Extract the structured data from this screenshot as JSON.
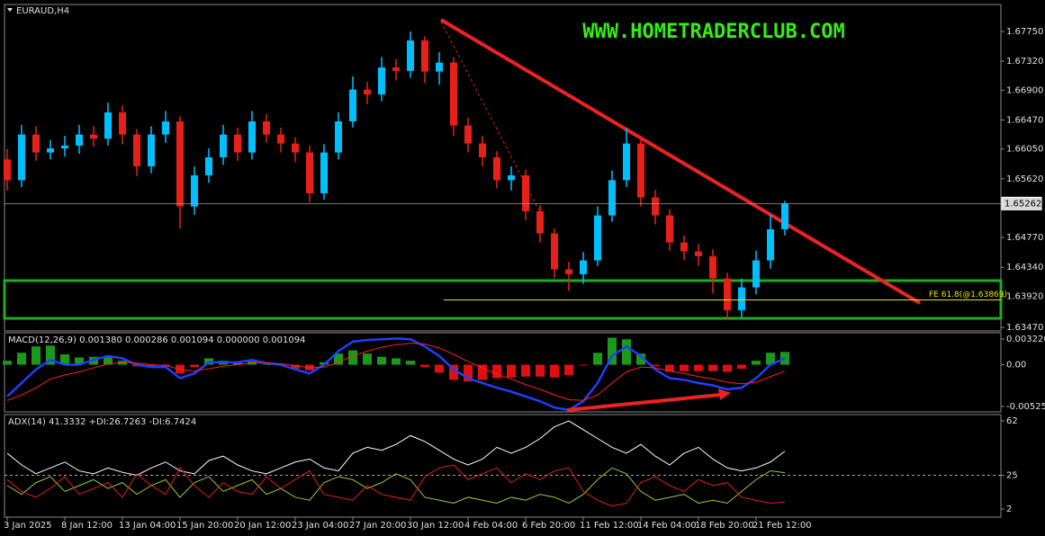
{
  "chart_data": [
    {
      "type": "candlestick",
      "title": "EURAUD,H4",
      "watermark": "WWW.HOMETRADERCLUB.COM",
      "categories": [
        "3 Jan 2025",
        null,
        null,
        null,
        "8 Jan 12:00",
        null,
        null,
        null,
        "13 Jan 04:00",
        null,
        null,
        null,
        "15 Jan 20:00",
        null,
        null,
        null,
        "20 Jan 12:00",
        null,
        null,
        null,
        "23 Jan 04:00",
        null,
        null,
        null,
        "27 Jan 20:00",
        null,
        null,
        null,
        "30 Jan 12:00",
        null,
        null,
        null,
        "4 Feb 04:00",
        null,
        null,
        null,
        "6 Feb 20:00",
        null,
        null,
        null,
        "11 Feb 12:00",
        null,
        null,
        null,
        "14 Feb 04:00",
        null,
        null,
        null,
        "18 Feb 20:00",
        null,
        null,
        null,
        "21 Feb 12:00",
        null,
        null
      ],
      "open": [
        1.659,
        1.656,
        1.6626,
        1.66,
        1.6606,
        1.661,
        1.6626,
        1.662,
        1.6658,
        1.6626,
        1.658,
        1.6626,
        1.6645,
        1.6522,
        1.6567,
        1.6593,
        1.6626,
        1.66,
        1.6645,
        1.6626,
        1.6613,
        1.66,
        1.6541,
        1.66,
        1.6645,
        1.6691,
        1.6684,
        1.6723,
        1.6718,
        1.6762,
        1.6717,
        1.673,
        1.6639,
        1.6613,
        1.6593,
        1.656,
        1.6567,
        1.6515,
        1.6483,
        1.6431,
        1.6424,
        1.6444,
        1.6509,
        1.656,
        1.6613,
        1.6535,
        1.6509,
        1.647,
        1.6457,
        1.645,
        1.6418,
        1.6372,
        1.6405,
        1.6444,
        1.6489
      ],
      "high": [
        1.6605,
        1.664,
        1.6638,
        1.6618,
        1.6624,
        1.664,
        1.6638,
        1.6672,
        1.6668,
        1.6634,
        1.6638,
        1.666,
        1.6652,
        1.658,
        1.6606,
        1.664,
        1.6636,
        1.666,
        1.6656,
        1.6636,
        1.6622,
        1.661,
        1.6612,
        1.6658,
        1.671,
        1.6702,
        1.6738,
        1.6735,
        1.6775,
        1.6768,
        1.6745,
        1.6738,
        1.665,
        1.6624,
        1.6602,
        1.658,
        1.6575,
        1.6524,
        1.649,
        1.6442,
        1.6456,
        1.6522,
        1.6574,
        1.6635,
        1.662,
        1.6546,
        1.6518,
        1.648,
        1.6468,
        1.646,
        1.6426,
        1.6418,
        1.6458,
        1.651,
        1.653
      ],
      "low": [
        1.6545,
        1.655,
        1.6588,
        1.659,
        1.6594,
        1.6598,
        1.6608,
        1.661,
        1.6612,
        1.6566,
        1.657,
        1.6614,
        1.649,
        1.651,
        1.6556,
        1.6582,
        1.6588,
        1.659,
        1.6614,
        1.66,
        1.6586,
        1.6528,
        1.6532,
        1.659,
        1.6636,
        1.667,
        1.6674,
        1.6704,
        1.6708,
        1.67,
        1.6698,
        1.6624,
        1.66,
        1.658,
        1.6548,
        1.6545,
        1.6502,
        1.647,
        1.6418,
        1.64,
        1.641,
        1.6436,
        1.65,
        1.655,
        1.6522,
        1.6496,
        1.6458,
        1.6444,
        1.6436,
        1.6396,
        1.636,
        1.6362,
        1.6395,
        1.6432,
        1.648
      ],
      "close": [
        1.656,
        1.6626,
        1.66,
        1.6606,
        1.661,
        1.6626,
        1.662,
        1.6658,
        1.6626,
        1.658,
        1.6626,
        1.6645,
        1.6522,
        1.6567,
        1.6593,
        1.6626,
        1.66,
        1.6645,
        1.6626,
        1.6613,
        1.66,
        1.6541,
        1.66,
        1.6645,
        1.6691,
        1.6684,
        1.6723,
        1.6718,
        1.6762,
        1.6717,
        1.673,
        1.6639,
        1.6613,
        1.6593,
        1.656,
        1.6567,
        1.6515,
        1.6483,
        1.6431,
        1.6424,
        1.6444,
        1.6509,
        1.656,
        1.6613,
        1.6535,
        1.6509,
        1.647,
        1.6457,
        1.645,
        1.6418,
        1.6372,
        1.6405,
        1.6444,
        1.6489,
        1.65262
      ],
      "up_color": "#00bfff",
      "down_color": "#e8201a",
      "ylim": [
        1.6342,
        1.6814
      ],
      "yticks": [
        {
          "value": 1.6775,
          "label": "1.67750"
        },
        {
          "value": 1.6732,
          "label": "1.67320"
        },
        {
          "value": 1.669,
          "label": "1.66900"
        },
        {
          "value": 1.6647,
          "label": "1.66470"
        },
        {
          "value": 1.6605,
          "label": "1.66050"
        },
        {
          "value": 1.6562,
          "label": "1.65620"
        },
        {
          "value": 1.6477,
          "label": "1.64770"
        },
        {
          "value": 1.6434,
          "label": "1.64340"
        },
        {
          "value": 1.6392,
          "label": "1.63920"
        },
        {
          "value": 1.6347,
          "label": "1.63470"
        }
      ],
      "fe_level": 1.63869,
      "fe_label": "FE 61.8(@1.63869)",
      "fe_color": "#e6e600"
    },
    {
      "type": "macd",
      "title": "MACD(12,26,9) 0.001380 0.000286 0.001094 0.000000 0.001094",
      "histogram": {
        "up_color": "#1a9a1a",
        "down_color": "#e01010",
        "values": [
          0.0005,
          0.0015,
          0.0023,
          0.0024,
          0.0013,
          0.0009,
          0.001,
          0.001,
          0.0005,
          -0.0002,
          -0.0003,
          -0.0002,
          -0.0011,
          -0.0003,
          0.0008,
          0.0005,
          0.0003,
          0.0004,
          0.0,
          -0.0001,
          -0.0005,
          -0.0007,
          0.0003,
          0.0014,
          0.0018,
          0.0014,
          0.001,
          0.0008,
          0.0005,
          -0.0003,
          -0.001,
          -0.0019,
          -0.0021,
          -0.0019,
          -0.0017,
          -0.0016,
          -0.0015,
          -0.0015,
          -0.0016,
          -0.0013,
          -0.0001,
          0.0015,
          0.0034,
          0.0032,
          0.0014,
          -0.0002,
          -0.0009,
          -0.0008,
          -0.0008,
          -0.0008,
          -0.0009,
          -0.0005,
          0.0005,
          0.0015,
          0.0016
        ]
      },
      "series": [
        {
          "color": "#1f3fff",
          "values": [
            -0.004,
            -0.0023,
            -0.0006,
            0.0006,
            0.0,
            0.0,
            0.0006,
            0.0011,
            0.0008,
            0.0,
            -0.0003,
            -0.0003,
            -0.0017,
            -0.0011,
            0.0003,
            0.0003,
            0.0003,
            0.0006,
            0.0002,
            0.0,
            -0.0006,
            -0.0011,
            0.0,
            0.0017,
            0.0029,
            0.0031,
            0.0032,
            0.0033,
            0.0032,
            0.0023,
            0.0011,
            -0.0006,
            -0.0017,
            -0.0023,
            -0.0029,
            -0.0034,
            -0.004,
            -0.0046,
            -0.0054,
            -0.0057,
            -0.0046,
            -0.0023,
            0.0011,
            0.0023,
            0.0011,
            -0.0006,
            -0.0017,
            -0.0019,
            -0.0023,
            -0.0026,
            -0.0031,
            -0.0029,
            -0.0017,
            0.0,
            0.0008
          ]
        },
        {
          "color": "#ff2020",
          "values": [
            -0.0045,
            -0.0038,
            -0.0029,
            -0.0018,
            -0.0013,
            -0.0009,
            -0.0004,
            0.0001,
            0.0003,
            0.0002,
            0.0,
            -0.0001,
            -0.0006,
            -0.0008,
            -0.0005,
            -0.0002,
            0.0,
            0.0002,
            0.0002,
            0.0001,
            -0.0001,
            -0.0004,
            -0.0003,
            0.0003,
            0.0011,
            0.0017,
            0.0022,
            0.0025,
            0.0027,
            0.0026,
            0.0021,
            0.0013,
            0.0004,
            -0.0004,
            -0.0012,
            -0.0018,
            -0.0025,
            -0.0031,
            -0.0038,
            -0.0044,
            -0.0045,
            -0.0038,
            -0.0023,
            -0.0009,
            -0.0003,
            -0.0004,
            -0.0008,
            -0.0011,
            -0.0015,
            -0.0018,
            -0.0022,
            -0.0024,
            -0.0022,
            -0.0015,
            -0.0008
          ]
        }
      ],
      "ylim": [
        -0.00594,
        0.00402
      ],
      "yticks": [
        0.003226,
        {
          "value": 0,
          "label": "0.00"
        },
        -0.005254
      ]
    },
    {
      "type": "adx",
      "title": "ADX(14) 41.3332 +DI:26.7263 -DI:6.7424",
      "series": [
        {
          "color": "#ffffff",
          "values": [
            40,
            32,
            26,
            30,
            34,
            28,
            26,
            30,
            27,
            25,
            30,
            34,
            28,
            26,
            35,
            38,
            32,
            28,
            26,
            30,
            34,
            36,
            30,
            28,
            40,
            44,
            42,
            46,
            52,
            48,
            42,
            36,
            32,
            36,
            44,
            40,
            44,
            50,
            58,
            62,
            56,
            50,
            44,
            40,
            46,
            38,
            32,
            40,
            44,
            36,
            30,
            28,
            30,
            34,
            41.3332
          ]
        },
        {
          "color": "#9acd32",
          "values": [
            18,
            12,
            20,
            24,
            14,
            18,
            22,
            16,
            20,
            12,
            18,
            22,
            10,
            20,
            24,
            14,
            18,
            22,
            12,
            16,
            10,
            8,
            20,
            24,
            22,
            16,
            20,
            26,
            22,
            10,
            8,
            6,
            10,
            8,
            6,
            10,
            8,
            12,
            10,
            6,
            12,
            22,
            30,
            26,
            14,
            8,
            10,
            12,
            6,
            8,
            6,
            14,
            22,
            28,
            26.7263
          ]
        },
        {
          "color": "#e02020",
          "values": [
            22,
            14,
            10,
            16,
            24,
            12,
            16,
            20,
            10,
            26,
            18,
            12,
            30,
            18,
            10,
            20,
            14,
            12,
            24,
            16,
            22,
            28,
            12,
            10,
            8,
            18,
            12,
            10,
            8,
            24,
            30,
            32,
            22,
            26,
            30,
            20,
            26,
            22,
            28,
            30,
            14,
            8,
            4,
            6,
            20,
            24,
            18,
            14,
            22,
            18,
            20,
            10,
            8,
            6,
            6.7424
          ]
        }
      ],
      "ylim": [
        -3.5,
        66.3
      ],
      "yticks": [
        62,
        25,
        2
      ],
      "levels": [
        25
      ]
    }
  ]
}
